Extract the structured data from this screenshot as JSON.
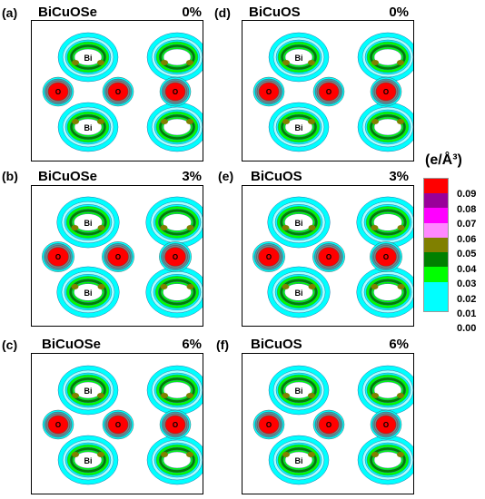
{
  "panels": [
    {
      "letter": "(a)",
      "title": "BiCuOSe",
      "strain": "0%"
    },
    {
      "letter": "(b)",
      "title": "BiCuOSe",
      "strain": "3%"
    },
    {
      "letter": "(c)",
      "title": "BiCuOSe",
      "strain": "6%"
    },
    {
      "letter": "(d)",
      "title": "BiCuOS",
      "strain": "0%"
    },
    {
      "letter": "(e)",
      "title": "BiCuOS",
      "strain": "3%"
    },
    {
      "letter": "(f)",
      "title": "BiCuOS",
      "strain": "6%"
    }
  ],
  "atom_labels": {
    "bi": "Bi",
    "o": "O"
  },
  "colorbar": {
    "title": "(e/Å³)",
    "ticks": [
      "0.09",
      "0.08",
      "0.07",
      "0.06",
      "0.05",
      "0.04",
      "0.03",
      "0.02",
      "0.01",
      "0.00"
    ],
    "colors": [
      "#ff0000",
      "#990099",
      "#ff00ff",
      "#ff88ff",
      "#808000",
      "#008000",
      "#00ff00",
      "#00ffff",
      "#00ffff"
    ]
  }
}
